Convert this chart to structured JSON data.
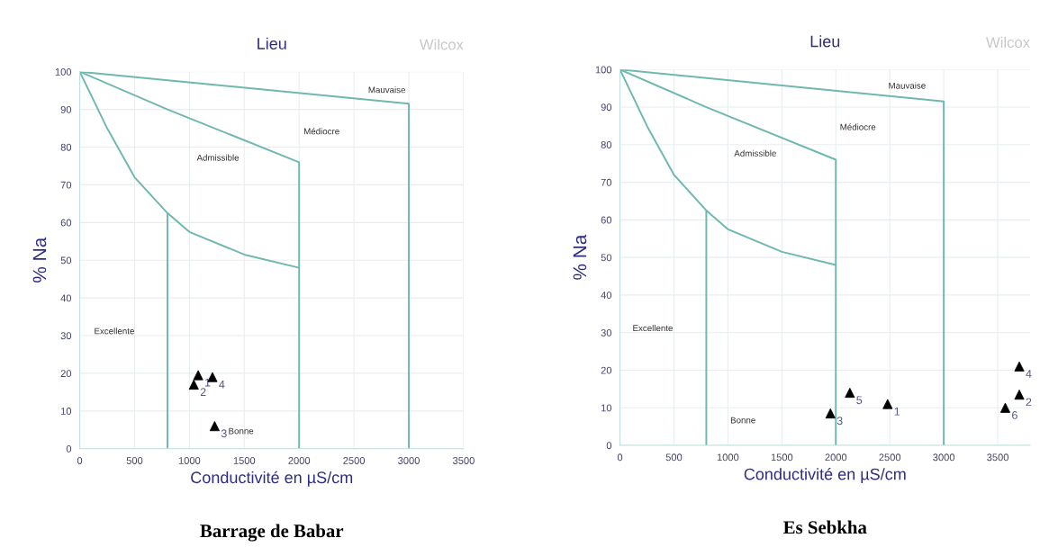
{
  "chart_data": [
    {
      "type": "scatter",
      "title": "Lieu",
      "xlabel": "Conductivité en µS/cm",
      "ylabel": "% Na",
      "xlim": [
        0,
        3500
      ],
      "ylim": [
        0,
        100
      ],
      "xticks": [
        0,
        500,
        1000,
        1500,
        2000,
        2500,
        3000,
        3500
      ],
      "yticks": [
        0,
        10,
        20,
        30,
        40,
        50,
        60,
        70,
        80,
        90,
        100
      ],
      "grid": true,
      "series": [
        {
          "type": "line",
          "color": "#6fb8b0",
          "marker": "none",
          "x": [
            0,
            3000,
            3000
          ],
          "values": [
            100,
            91.5,
            0
          ]
        },
        {
          "type": "line",
          "color": "#6fb8b0",
          "marker": "none",
          "x": [
            0,
            800,
            2000,
            2000
          ],
          "values": [
            100,
            90,
            76,
            0
          ]
        },
        {
          "type": "line",
          "color": "#6fb8b0",
          "marker": "none",
          "x": [
            0,
            250,
            500,
            800,
            1000,
            1500,
            2000
          ],
          "values": [
            100,
            85,
            72,
            62.5,
            57.5,
            51.5,
            48
          ]
        },
        {
          "type": "line",
          "color": "#6fb8b0",
          "marker": "none",
          "x": [
            800,
            800
          ],
          "values": [
            62.5,
            0
          ]
        },
        {
          "type": "scatter",
          "color": "#000000",
          "marker": "triangle",
          "x": [
            1080,
            1040,
            1230,
            1210
          ],
          "values": [
            19.5,
            17,
            6,
            19
          ]
        }
      ],
      "annotations": [
        {
          "text": "1",
          "x": 1080,
          "y": 19.5
        },
        {
          "text": "2",
          "x": 1040,
          "y": 17
        },
        {
          "text": "3",
          "x": 1230,
          "y": 6
        },
        {
          "text": "4",
          "x": 1210,
          "y": 19
        },
        "Mauvaise",
        "Médiocre",
        "Admissible",
        "Excellente",
        "Bonne",
        "Wilcox",
        "Barrage de Babar"
      ]
    },
    {
      "type": "scatter",
      "title": "Lieu",
      "xlabel": "Conductivité en µS/cm",
      "ylabel": "% Na",
      "xlim": [
        0,
        3800
      ],
      "ylim": [
        0,
        100
      ],
      "xticks": [
        0,
        500,
        1000,
        1500,
        2000,
        2500,
        3000,
        3500
      ],
      "yticks": [
        0,
        10,
        20,
        30,
        40,
        50,
        60,
        70,
        80,
        90,
        100
      ],
      "grid": true,
      "series": [
        {
          "type": "line",
          "color": "#6fb8b0",
          "marker": "none",
          "x": [
            0,
            3000,
            3000
          ],
          "values": [
            100,
            91.5,
            0
          ]
        },
        {
          "type": "line",
          "color": "#6fb8b0",
          "marker": "none",
          "x": [
            0,
            800,
            2000,
            2000
          ],
          "values": [
            100,
            90,
            76,
            0
          ]
        },
        {
          "type": "line",
          "color": "#6fb8b0",
          "marker": "none",
          "x": [
            0,
            250,
            500,
            800,
            1000,
            1500,
            2000
          ],
          "values": [
            100,
            85,
            72,
            62.5,
            57.5,
            51.5,
            48
          ]
        },
        {
          "type": "line",
          "color": "#6fb8b0",
          "marker": "none",
          "x": [
            800,
            800
          ],
          "values": [
            62.5,
            0
          ]
        },
        {
          "type": "scatter",
          "color": "#000000",
          "marker": "triangle",
          "x": [
            2480,
            3700,
            1950,
            3700,
            2130,
            3570
          ],
          "values": [
            11,
            13.5,
            8.5,
            21,
            14,
            10
          ]
        }
      ],
      "annotations": [
        {
          "text": "1",
          "x": 2480,
          "y": 11
        },
        {
          "text": "2",
          "x": 3700,
          "y": 13.5
        },
        {
          "text": "3",
          "x": 1950,
          "y": 8.5
        },
        {
          "text": "4",
          "x": 3700,
          "y": 21
        },
        {
          "text": "5",
          "x": 2130,
          "y": 14
        },
        {
          "text": "6",
          "x": 3570,
          "y": 10
        },
        "Mauvaise",
        "Médiocre",
        "Admissible",
        "Excellente",
        "Bonne",
        "Wilcox",
        "Es Sebkha"
      ]
    }
  ]
}
